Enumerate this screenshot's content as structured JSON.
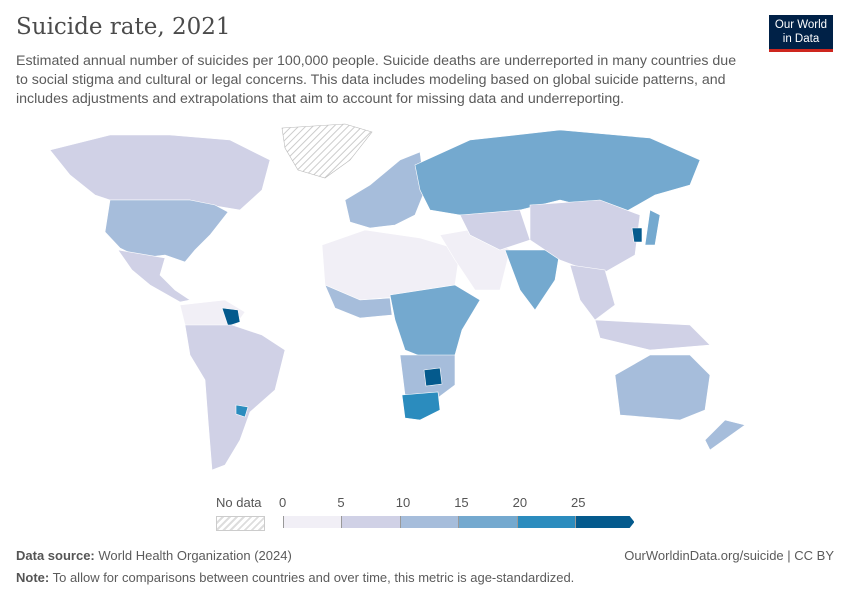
{
  "title": "Suicide rate, 2021",
  "subtitle": "Estimated annual number of suicides per 100,000 people. Suicide deaths are underreported in many countries due to social stigma and cultural or legal concerns. This data includes modeling based on global suicide patterns, and includes adjustments and extrapolations that aim to account for missing data and underreporting.",
  "logo": {
    "line1": "Our World",
    "line2": "in Data"
  },
  "legend": {
    "no_data_label": "No data",
    "ticks": [
      "0",
      "5",
      "10",
      "15",
      "20",
      "25"
    ],
    "colors": [
      "#f1eff6",
      "#d0d1e6",
      "#a6bddb",
      "#74a9cf",
      "#2b8cbe",
      "#045a8d"
    ]
  },
  "footer": {
    "source_label": "Data source:",
    "source": "World Health Organization (2024)",
    "note_label": "Note:",
    "note": "To allow for comparisons between countries and over time, this metric is age-standardized.",
    "url": "OurWorldinData.org/suicide | CC BY"
  }
}
